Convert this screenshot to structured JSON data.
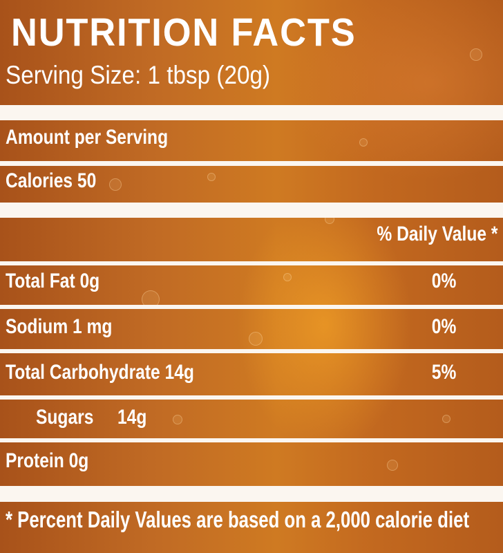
{
  "label": {
    "title": "NUTRITION FACTS",
    "serving_size": "Serving Size: 1 tbsp (20g)",
    "amount_header": "Amount per Serving",
    "calories": "Calories 50",
    "daily_value_header": "% Daily Value *",
    "rows": [
      {
        "name": "Total Fat 0g",
        "dv": "0%"
      },
      {
        "name": "Sodium 1 mg",
        "dv": "0%"
      },
      {
        "name": "Total Carbohydrate 14g",
        "dv": "5%"
      },
      {
        "name": "Sugars",
        "amount": "14g"
      },
      {
        "name": "Protein 0g"
      }
    ],
    "footnote": "* Percent Daily Values are based on a 2,000 calorie diet"
  },
  "colors": {
    "background": "#c06a24",
    "rule": "#fbf6f0",
    "text": "#ffffff"
  }
}
